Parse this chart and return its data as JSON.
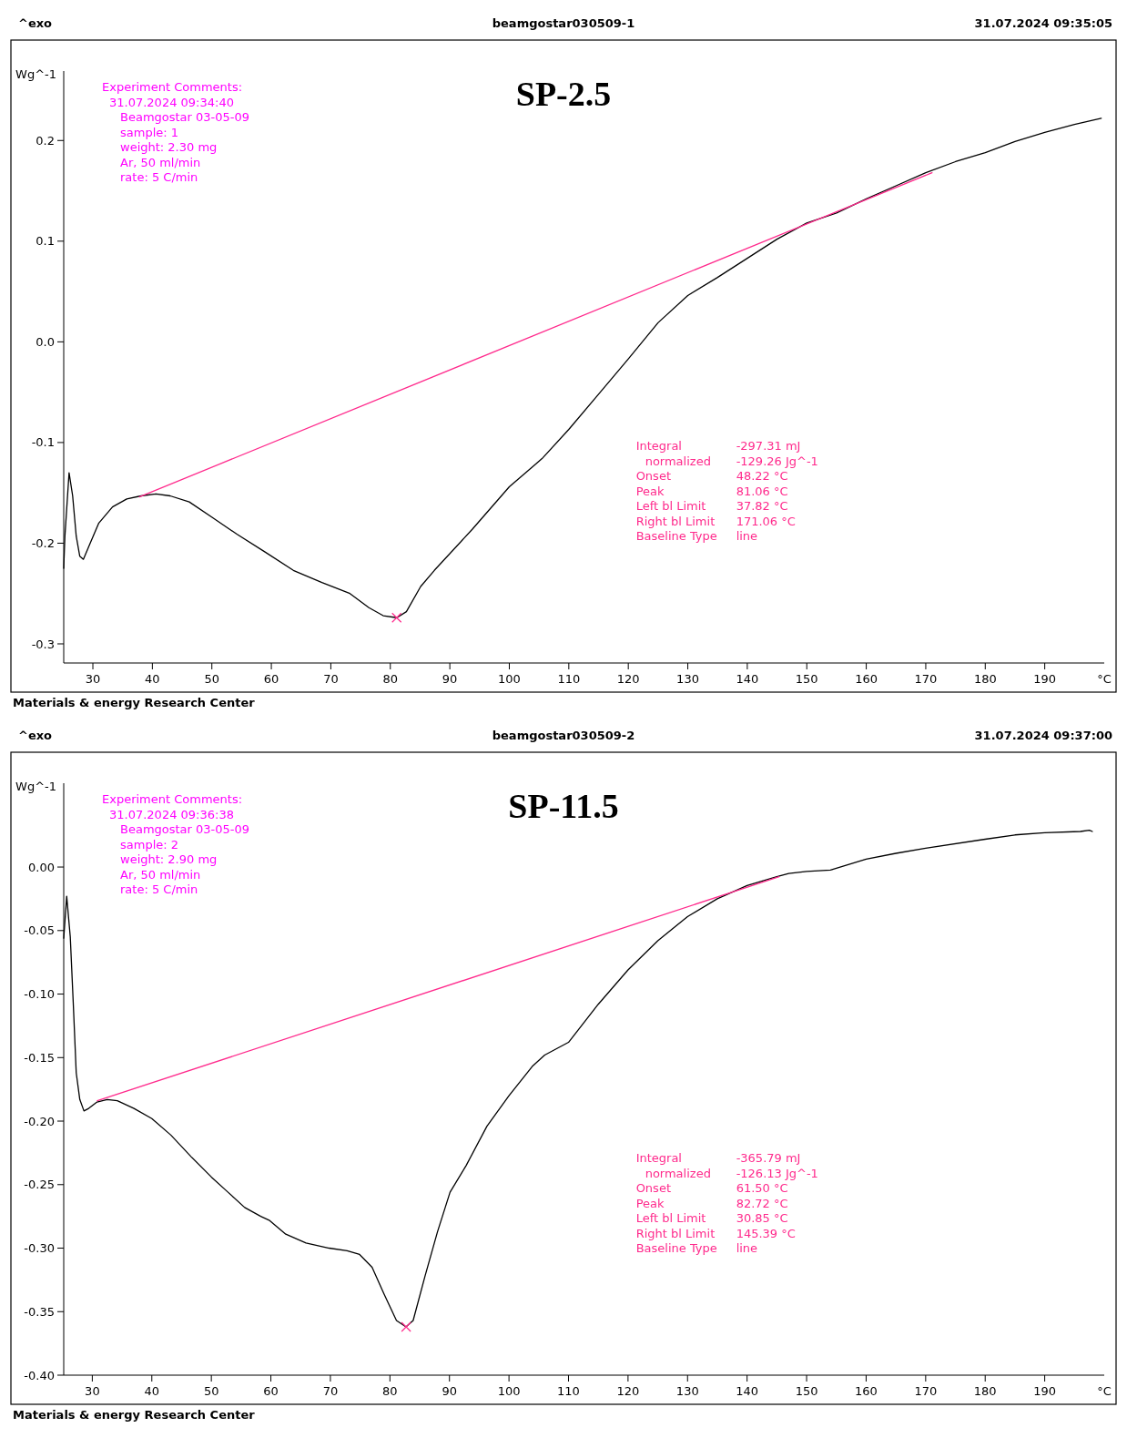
{
  "chart_data": [
    {
      "type": "line",
      "title": "SP-2.5",
      "xlabel": "°C",
      "ylabel": "Wg^-1",
      "annotations": [
        "^exo",
        "beamgostar030509-1",
        "31.07.2024 09:35:05",
        "Experiment Comments:",
        "31.07.2024 09:34:40",
        "Beamgostar 03-05-09",
        "sample: 1",
        "weight: 2.30 mg",
        "Ar, 50 ml/min",
        "rate: 5 C/min",
        "Integral",
        "-297.31 mJ",
        "normalized",
        "-129.26 Jg^-1",
        "Onset",
        "48.22 °C",
        "Peak",
        "81.06 °C",
        "Left bl Limit",
        "37.82 °C",
        "Right bl Limit",
        "171.06 °C",
        "Baseline Type",
        "line",
        "Materials & energy Research Center"
      ],
      "xlim": [
        25.1,
        200
      ],
      "ylim": [
        -0.319,
        0.269
      ],
      "xticks": [
        30,
        40,
        50,
        60,
        70,
        80,
        90,
        100,
        110,
        120,
        130,
        140,
        150,
        160,
        170,
        180,
        190
      ],
      "yticks": [
        -0.3,
        -0.2,
        -0.1,
        {
          "value": 0,
          "label": "0.0"
        },
        0.1,
        0.2
      ],
      "series": [
        {
          "color": "#000000",
          "x": [
            25.1,
            25.3,
            26,
            26.6,
            27.2,
            27.8,
            28.4,
            29.4,
            31,
            33.3,
            35.7,
            38.1,
            40.6,
            43,
            46.2,
            50.2,
            54.2,
            59,
            63.7,
            68.5,
            73.2,
            76.4,
            78.8,
            81.1,
            82.7,
            85.1,
            87.4,
            93.8,
            100,
            105.5,
            110,
            115,
            120,
            125,
            130,
            135,
            140,
            145,
            150,
            155,
            160,
            165,
            170,
            175,
            180,
            185,
            190,
            195,
            199.5
          ],
          "values": [
            -0.225,
            -0.193,
            -0.13,
            -0.153,
            -0.193,
            -0.213,
            -0.216,
            -0.202,
            -0.18,
            -0.164,
            -0.156,
            -0.153,
            -0.151,
            -0.153,
            -0.159,
            -0.175,
            -0.191,
            -0.209,
            -0.227,
            -0.239,
            -0.25,
            -0.264,
            -0.272,
            -0.274,
            -0.268,
            -0.243,
            -0.227,
            -0.186,
            -0.144,
            -0.116,
            -0.087,
            -0.052,
            -0.017,
            0.019,
            0.046,
            0.064,
            0.083,
            0.102,
            0.118,
            0.128,
            0.142,
            0.155,
            0.168,
            0.179,
            0.188,
            0.199,
            0.208,
            0.216,
            0.222
          ]
        },
        {
          "color": "#ff2a8c",
          "x": [
            37.82,
            171.06
          ],
          "values": [
            -0.154,
            0.168
          ]
        },
        {
          "type": "scatter",
          "marker": "cross",
          "color": "#ff2a8c",
          "x": [
            81.06
          ],
          "values": [
            -0.274
          ]
        }
      ]
    },
    {
      "type": "line",
      "title": "SP-11.5",
      "xlabel": "°C",
      "ylabel": "Wg^-1",
      "annotations": [
        "^exo",
        "beamgostar030509-2",
        "31.07.2024 09:37:00",
        "Experiment Comments:",
        "31.07.2024 09:36:38",
        "Beamgostar 03-05-09",
        "sample: 2",
        "weight: 2.90 mg",
        "Ar, 50 ml/min",
        "rate: 5 C/min",
        "Integral",
        "-365.79 mJ",
        "normalized",
        "-126.13 Jg^-1",
        "Onset",
        "61.50 °C",
        "Peak",
        "82.72 °C",
        "Left bl Limit",
        "30.85 °C",
        "Right bl Limit",
        "145.39 °C",
        "Baseline Type",
        "line",
        "Materials & energy Research Center"
      ],
      "xlim": [
        25.2,
        200
      ],
      "ylim": [
        -0.4,
        0.066
      ],
      "xticks": [
        30,
        40,
        50,
        60,
        70,
        80,
        90,
        100,
        110,
        120,
        130,
        140,
        150,
        160,
        170,
        180,
        190
      ],
      "yticks": [
        {
          "value": -0.4,
          "label": "-0.40"
        },
        {
          "value": -0.35,
          "label": "-0.35"
        },
        {
          "value": -0.3,
          "label": "-0.30"
        },
        {
          "value": -0.25,
          "label": "-0.25"
        },
        {
          "value": -0.2,
          "label": "-0.20"
        },
        {
          "value": -0.15,
          "label": "-0.15"
        },
        {
          "value": -0.1,
          "label": "-0.10"
        },
        {
          "value": -0.05,
          "label": "-0.05"
        },
        {
          "value": 0,
          "label": "0.00"
        }
      ],
      "series": [
        {
          "color": "#000000",
          "x": [
            25.2,
            25.7,
            26.3,
            26.8,
            27.3,
            27.9,
            28.6,
            29.4,
            30.8,
            32.5,
            34.2,
            37,
            40,
            43.2,
            46.6,
            50,
            52.8,
            55.6,
            58.3,
            59.7,
            62.5,
            65.9,
            69.8,
            72.8,
            74.9,
            77,
            79,
            81.1,
            82.7,
            83.9,
            85.9,
            88,
            90.1,
            92.8,
            96.3,
            100,
            103.9,
            106,
            110,
            115,
            120,
            125,
            130,
            135,
            140,
            145,
            147,
            150,
            154,
            160,
            165,
            170,
            180,
            185,
            190,
            196,
            197.5,
            198
          ],
          "values": [
            -0.056,
            -0.023,
            -0.055,
            -0.107,
            -0.162,
            -0.183,
            -0.192,
            -0.19,
            -0.185,
            -0.183,
            -0.184,
            -0.19,
            -0.198,
            -0.211,
            -0.228,
            -0.244,
            -0.256,
            -0.268,
            -0.275,
            -0.278,
            -0.289,
            -0.296,
            -0.3,
            -0.302,
            -0.305,
            -0.315,
            -0.336,
            -0.357,
            -0.362,
            -0.357,
            -0.322,
            -0.287,
            -0.256,
            -0.235,
            -0.204,
            -0.18,
            -0.157,
            -0.148,
            -0.138,
            -0.108,
            -0.081,
            -0.058,
            -0.039,
            -0.025,
            -0.0146,
            -0.0076,
            -0.005,
            -0.0035,
            -0.0024,
            0.0063,
            0.0108,
            0.0149,
            0.0219,
            0.0253,
            0.027,
            0.028,
            0.029,
            0.028
          ]
        },
        {
          "color": "#ff2a8c",
          "x": [
            30.85,
            145.39
          ],
          "values": [
            -0.184,
            -0.0076
          ]
        },
        {
          "type": "scatter",
          "marker": "cross",
          "color": "#ff2a8c",
          "x": [
            82.72
          ],
          "values": [
            -0.362
          ]
        }
      ]
    }
  ]
}
